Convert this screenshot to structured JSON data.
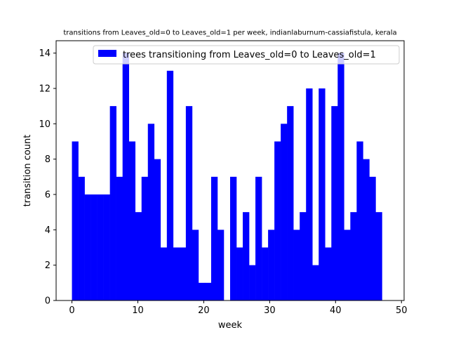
{
  "chart_data": {
    "type": "bar",
    "title": "transitions from Leaves_old=0 to Leaves_old=1 per week, indianlaburnum-cassiafistula, kerala",
    "xlabel": "week",
    "ylabel": "transition count",
    "xlim": [
      -2.4,
      50.4
    ],
    "ylim": [
      0,
      14.7
    ],
    "xticks": [
      "0",
      "10",
      "20",
      "30",
      "40",
      "50"
    ],
    "yticks": [
      "0",
      "2",
      "4",
      "6",
      "8",
      "10",
      "12",
      "14"
    ],
    "bin_start": 0,
    "bin_width": 0.96,
    "values": [
      9,
      7,
      6,
      6,
      6,
      6,
      11,
      7,
      14,
      9,
      5,
      7,
      10,
      8,
      3,
      13,
      3,
      3,
      11,
      4,
      1,
      1,
      7,
      4,
      0,
      7,
      3,
      5,
      2,
      7,
      3,
      4,
      9,
      10,
      11,
      4,
      5,
      12,
      2,
      12,
      3,
      11,
      14,
      4,
      5,
      9,
      8,
      7,
      5
    ],
    "series": [
      {
        "name": "trees transitioning from Leaves_old=0 to Leaves_old=1",
        "color": "#0000ff"
      }
    ],
    "grid": false,
    "legend_position": "top-right"
  }
}
